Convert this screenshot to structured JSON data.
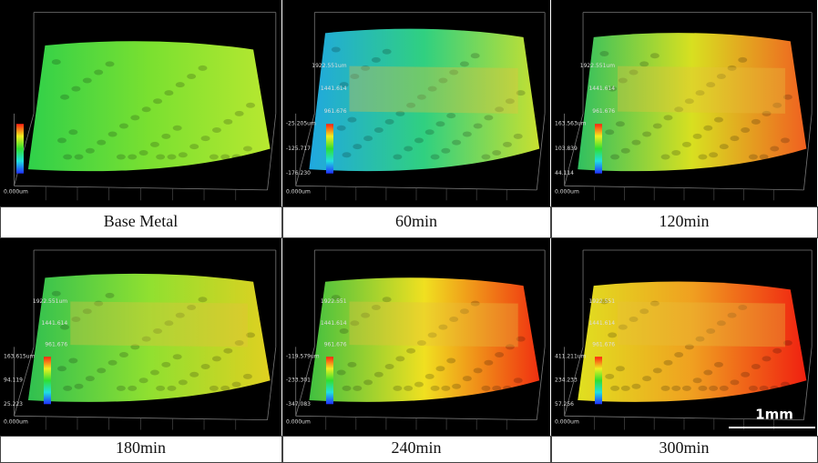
{
  "panels": [
    {
      "caption": "Base Metal",
      "axis_labels": [],
      "scale_labels": [
        "0.000um"
      ]
    },
    {
      "caption": "60min",
      "axis_labels": [
        "1922.551um",
        "1441.614",
        "961.676"
      ],
      "scale_labels": [
        "-25.205um",
        "-125.717",
        "-176.230",
        "0.000um"
      ]
    },
    {
      "caption": "120min",
      "axis_labels": [
        "1922.551um",
        "1441.614",
        "961.676"
      ],
      "scale_labels": [
        "163.563um",
        "103.839",
        "44.114",
        "0.000um"
      ]
    },
    {
      "caption": "180min",
      "axis_labels": [
        "1922.551um",
        "1441.614",
        "961.676"
      ],
      "scale_labels": [
        "163.615um",
        "94.119",
        "25.223",
        "0.000um"
      ]
    },
    {
      "caption": "240min",
      "axis_labels": [
        "1922.551",
        "1441.614",
        "961.676"
      ],
      "scale_labels": [
        "-119.579um",
        "-233.301",
        "-347.083",
        "0.000um"
      ]
    },
    {
      "caption": "300min",
      "axis_labels": [
        "1922.551",
        "1441.614",
        "961.676"
      ],
      "scale_labels": [
        "411.211um",
        "234.233",
        "57.256",
        "0.000um"
      ]
    }
  ],
  "scale_bar": "1mm"
}
